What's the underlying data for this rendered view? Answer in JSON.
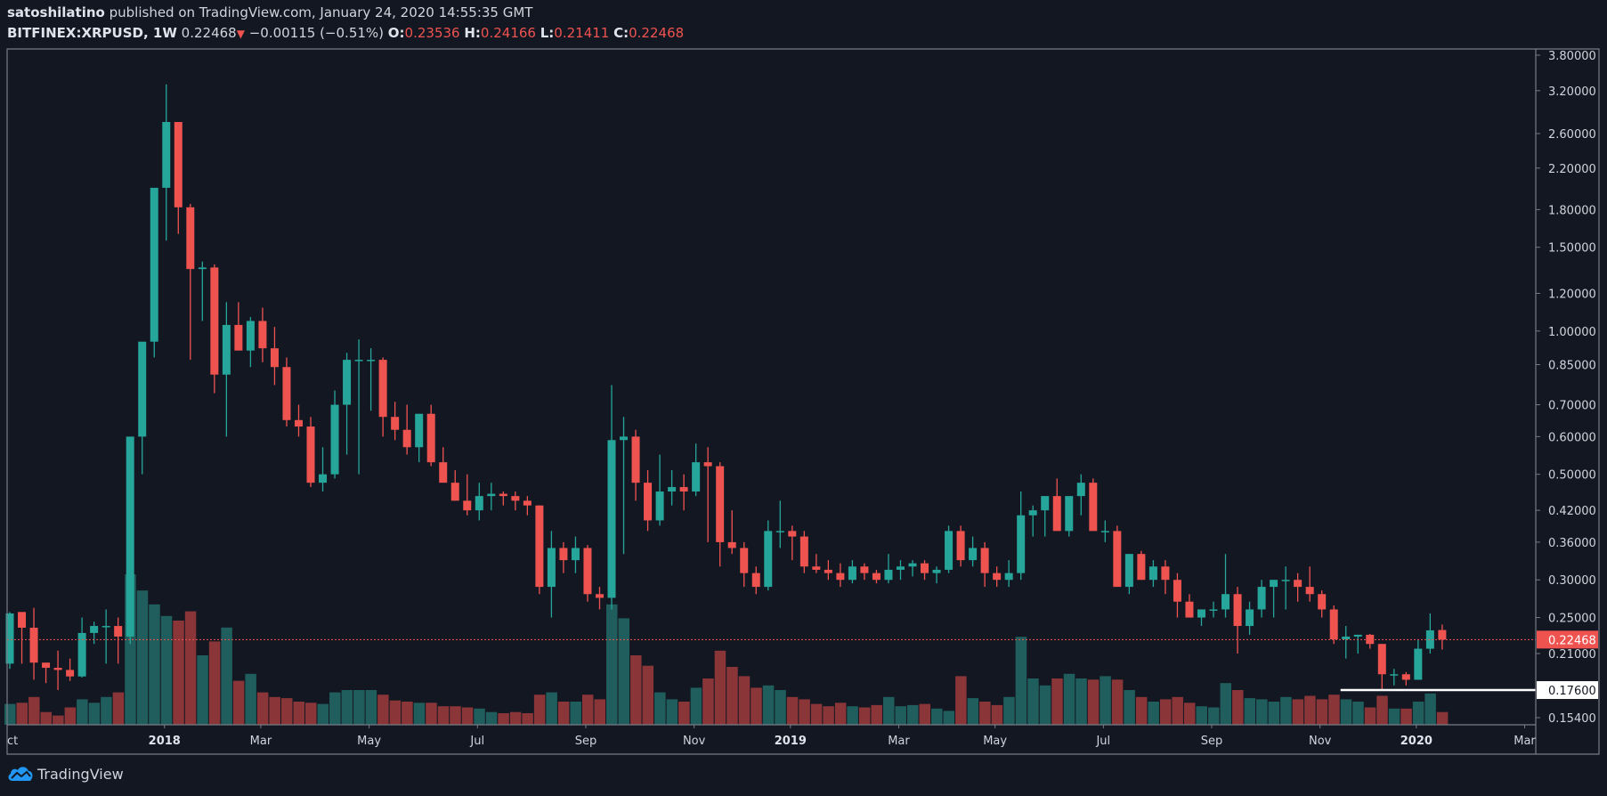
{
  "header": {
    "author": "satoshilatino",
    "published_text": "published on TradingView.com, January 24, 2020 14:55:35 GMT",
    "symbol": "BITFINEX:XRPUSD, 1W",
    "last": "0.22468",
    "change_arrow": "▼",
    "change": "−0.00115 (−0.51%)",
    "o_label": "O:",
    "o": "0.23536",
    "h_label": "H:",
    "h": "0.24166",
    "l_label": "L:",
    "l": "0.21411",
    "c_label": "C:",
    "c": "0.22468"
  },
  "footer": {
    "brand": "TradingView"
  },
  "colors": {
    "background": "#131722",
    "up": "#26a69a",
    "down": "#ef5350",
    "vol_up": "#1f5e5c",
    "vol_down": "#8a3538",
    "axis": "#787b86",
    "text": "#d1d4dc",
    "last_price_line": "#ef5350",
    "support_line": "#ffffff",
    "brand_blue": "#2196f3"
  },
  "chart_data": {
    "type": "candlestick",
    "title": "BITFINEX:XRPUSD, 1W",
    "xlabel": "",
    "ylabel": "",
    "scale": "log",
    "ylim": [
      0.15,
      3.9
    ],
    "y_ticks": [
      "3.80000",
      "3.20000",
      "2.60000",
      "2.20000",
      "1.80000",
      "1.50000",
      "1.20000",
      "1.00000",
      "0.85000",
      "0.70000",
      "0.60000",
      "0.50000",
      "0.42000",
      "0.36000",
      "0.30000",
      "0.25000",
      "0.21000",
      "0.15400"
    ],
    "x_ticks": [
      {
        "label": "ct",
        "index": 0,
        "bold": false
      },
      {
        "label": "2018",
        "index": 13,
        "bold": true
      },
      {
        "label": "Mar",
        "index": 21,
        "bold": false
      },
      {
        "label": "May",
        "index": 30,
        "bold": false
      },
      {
        "label": "Jul",
        "index": 39,
        "bold": false
      },
      {
        "label": "Sep",
        "index": 48,
        "bold": false
      },
      {
        "label": "Nov",
        "index": 57,
        "bold": false
      },
      {
        "label": "2019",
        "index": 65,
        "bold": true
      },
      {
        "label": "Mar",
        "index": 74,
        "bold": false
      },
      {
        "label": "May",
        "index": 82,
        "bold": false
      },
      {
        "label": "Jul",
        "index": 91,
        "bold": false
      },
      {
        "label": "Sep",
        "index": 100,
        "bold": false
      },
      {
        "label": "Nov",
        "index": 109,
        "bold": false
      },
      {
        "label": "2020",
        "index": 117,
        "bold": true
      },
      {
        "label": "Mar",
        "index": 126,
        "bold": false
      }
    ],
    "last_price": {
      "value": 0.22468,
      "label": "0.22468"
    },
    "horizontal_line": {
      "value": 0.176,
      "label": "0.17600",
      "from_index": 111
    },
    "grid": false,
    "legend": "none",
    "candles": [
      [
        0.2,
        0.2568,
        0.195,
        0.255,
        90
      ],
      [
        0.2568,
        0.256,
        0.2,
        0.238,
        95
      ],
      [
        0.238,
        0.262,
        0.185,
        0.201,
        120
      ],
      [
        0.201,
        0.2,
        0.182,
        0.196,
        55
      ],
      [
        0.196,
        0.213,
        0.176,
        0.194,
        40
      ],
      [
        0.194,
        0.205,
        0.184,
        0.188,
        75
      ],
      [
        0.188,
        0.25,
        0.187,
        0.232,
        110
      ],
      [
        0.232,
        0.245,
        0.22,
        0.24,
        95
      ],
      [
        0.24,
        0.26,
        0.2,
        0.24,
        120
      ],
      [
        0.24,
        0.25,
        0.2,
        0.228,
        140
      ],
      [
        0.228,
        0.37,
        0.22,
        0.6,
        650
      ],
      [
        0.6,
        0.9,
        0.5,
        0.95,
        580
      ],
      [
        0.95,
        1.35,
        0.88,
        2.0,
        520
      ],
      [
        2.0,
        3.3,
        1.55,
        2.75,
        470
      ],
      [
        2.75,
        2.75,
        1.6,
        1.82,
        450
      ],
      [
        1.82,
        1.85,
        0.87,
        1.35,
        490
      ],
      [
        1.35,
        1.4,
        1.05,
        1.36,
        300
      ],
      [
        1.36,
        1.38,
        0.74,
        0.81,
        360
      ],
      [
        0.81,
        1.15,
        0.6,
        1.03,
        420
      ],
      [
        1.03,
        1.15,
        0.91,
        0.91,
        190
      ],
      [
        0.91,
        1.07,
        0.84,
        1.05,
        220
      ],
      [
        1.05,
        1.12,
        0.86,
        0.92,
        140
      ],
      [
        0.92,
        1.02,
        0.77,
        0.84,
        120
      ],
      [
        0.84,
        0.88,
        0.63,
        0.65,
        115
      ],
      [
        0.65,
        0.7,
        0.6,
        0.63,
        100
      ],
      [
        0.63,
        0.66,
        0.47,
        0.48,
        95
      ],
      [
        0.48,
        0.57,
        0.46,
        0.5,
        90
      ],
      [
        0.5,
        0.75,
        0.49,
        0.7,
        140
      ],
      [
        0.7,
        0.9,
        0.55,
        0.87,
        150
      ],
      [
        0.87,
        0.96,
        0.5,
        0.87,
        150
      ],
      [
        0.87,
        0.92,
        0.68,
        0.87,
        150
      ],
      [
        0.87,
        0.88,
        0.6,
        0.66,
        130
      ],
      [
        0.66,
        0.71,
        0.59,
        0.62,
        105
      ],
      [
        0.62,
        0.7,
        0.55,
        0.57,
        100
      ],
      [
        0.57,
        0.67,
        0.53,
        0.67,
        95
      ],
      [
        0.67,
        0.7,
        0.52,
        0.53,
        95
      ],
      [
        0.53,
        0.57,
        0.5,
        0.48,
        80
      ],
      [
        0.48,
        0.51,
        0.44,
        0.44,
        80
      ],
      [
        0.44,
        0.5,
        0.41,
        0.42,
        75
      ],
      [
        0.42,
        0.48,
        0.4,
        0.45,
        70
      ],
      [
        0.45,
        0.48,
        0.42,
        0.455,
        55
      ],
      [
        0.455,
        0.46,
        0.43,
        0.45,
        50
      ],
      [
        0.45,
        0.46,
        0.42,
        0.44,
        55
      ],
      [
        0.44,
        0.45,
        0.41,
        0.43,
        50
      ],
      [
        0.43,
        0.43,
        0.28,
        0.29,
        130
      ],
      [
        0.29,
        0.38,
        0.25,
        0.35,
        140
      ],
      [
        0.35,
        0.36,
        0.31,
        0.33,
        100
      ],
      [
        0.33,
        0.37,
        0.31,
        0.35,
        100
      ],
      [
        0.35,
        0.355,
        0.27,
        0.28,
        130
      ],
      [
        0.28,
        0.29,
        0.26,
        0.275,
        110
      ],
      [
        0.275,
        0.77,
        0.26,
        0.59,
        520
      ],
      [
        0.59,
        0.66,
        0.34,
        0.6,
        460
      ],
      [
        0.6,
        0.62,
        0.44,
        0.48,
        300
      ],
      [
        0.48,
        0.51,
        0.38,
        0.4,
        255
      ],
      [
        0.4,
        0.55,
        0.39,
        0.46,
        140
      ],
      [
        0.46,
        0.51,
        0.43,
        0.47,
        110
      ],
      [
        0.47,
        0.5,
        0.42,
        0.46,
        100
      ],
      [
        0.46,
        0.58,
        0.45,
        0.53,
        160
      ],
      [
        0.53,
        0.57,
        0.36,
        0.52,
        200
      ],
      [
        0.52,
        0.53,
        0.32,
        0.36,
        320
      ],
      [
        0.36,
        0.42,
        0.34,
        0.35,
        250
      ],
      [
        0.35,
        0.36,
        0.29,
        0.31,
        210
      ],
      [
        0.31,
        0.32,
        0.28,
        0.29,
        160
      ],
      [
        0.29,
        0.4,
        0.285,
        0.38,
        170
      ],
      [
        0.38,
        0.44,
        0.35,
        0.38,
        150
      ],
      [
        0.38,
        0.39,
        0.33,
        0.37,
        120
      ],
      [
        0.37,
        0.38,
        0.31,
        0.32,
        110
      ],
      [
        0.32,
        0.34,
        0.31,
        0.315,
        90
      ],
      [
        0.315,
        0.33,
        0.3,
        0.31,
        80
      ],
      [
        0.31,
        0.325,
        0.29,
        0.3,
        95
      ],
      [
        0.3,
        0.33,
        0.295,
        0.32,
        80
      ],
      [
        0.32,
        0.325,
        0.3,
        0.31,
        75
      ],
      [
        0.31,
        0.315,
        0.295,
        0.3,
        85
      ],
      [
        0.3,
        0.34,
        0.295,
        0.315,
        120
      ],
      [
        0.315,
        0.33,
        0.3,
        0.32,
        80
      ],
      [
        0.32,
        0.33,
        0.305,
        0.325,
        85
      ],
      [
        0.325,
        0.33,
        0.3,
        0.31,
        90
      ],
      [
        0.31,
        0.32,
        0.295,
        0.315,
        70
      ],
      [
        0.315,
        0.39,
        0.31,
        0.38,
        60
      ],
      [
        0.38,
        0.39,
        0.32,
        0.33,
        210
      ],
      [
        0.33,
        0.37,
        0.32,
        0.35,
        115
      ],
      [
        0.35,
        0.36,
        0.29,
        0.31,
        100
      ],
      [
        0.31,
        0.32,
        0.29,
        0.3,
        85
      ],
      [
        0.3,
        0.33,
        0.29,
        0.31,
        120
      ],
      [
        0.31,
        0.46,
        0.3,
        0.41,
        380
      ],
      [
        0.41,
        0.43,
        0.37,
        0.42,
        200
      ],
      [
        0.42,
        0.45,
        0.37,
        0.45,
        170
      ],
      [
        0.45,
        0.49,
        0.39,
        0.38,
        200
      ],
      [
        0.38,
        0.4,
        0.37,
        0.45,
        220
      ],
      [
        0.45,
        0.5,
        0.41,
        0.48,
        200
      ],
      [
        0.48,
        0.49,
        0.39,
        0.38,
        195
      ],
      [
        0.38,
        0.4,
        0.36,
        0.38,
        210
      ],
      [
        0.38,
        0.39,
        0.3,
        0.29,
        195
      ],
      [
        0.29,
        0.34,
        0.28,
        0.34,
        150
      ],
      [
        0.34,
        0.345,
        0.3,
        0.3,
        120
      ],
      [
        0.3,
        0.33,
        0.29,
        0.32,
        100
      ],
      [
        0.32,
        0.33,
        0.28,
        0.3,
        110
      ],
      [
        0.3,
        0.31,
        0.25,
        0.27,
        120
      ],
      [
        0.27,
        0.28,
        0.25,
        0.25,
        95
      ],
      [
        0.25,
        0.26,
        0.24,
        0.26,
        80
      ],
      [
        0.26,
        0.27,
        0.25,
        0.26,
        75
      ],
      [
        0.26,
        0.34,
        0.25,
        0.28,
        180
      ],
      [
        0.28,
        0.29,
        0.21,
        0.24,
        150
      ],
      [
        0.24,
        0.27,
        0.23,
        0.26,
        115
      ],
      [
        0.26,
        0.3,
        0.25,
        0.29,
        110
      ],
      [
        0.29,
        0.3,
        0.25,
        0.3,
        100
      ],
      [
        0.3,
        0.32,
        0.26,
        0.3,
        120
      ],
      [
        0.3,
        0.31,
        0.27,
        0.29,
        110
      ],
      [
        0.29,
        0.32,
        0.27,
        0.28,
        125
      ],
      [
        0.28,
        0.285,
        0.25,
        0.26,
        110
      ],
      [
        0.26,
        0.265,
        0.22,
        0.225,
        130
      ],
      [
        0.225,
        0.24,
        0.205,
        0.228,
        110
      ],
      [
        0.228,
        0.23,
        0.21,
        0.23,
        100
      ],
      [
        0.23,
        0.231,
        0.215,
        0.22,
        75
      ],
      [
        0.22,
        0.22,
        0.176,
        0.19,
        125
      ],
      [
        0.19,
        0.195,
        0.18,
        0.19,
        70
      ],
      [
        0.19,
        0.192,
        0.18,
        0.185,
        70
      ],
      [
        0.185,
        0.225,
        0.185,
        0.215,
        100
      ],
      [
        0.215,
        0.255,
        0.21,
        0.235,
        135
      ],
      [
        0.23536,
        0.24166,
        0.21411,
        0.22468,
        55
      ]
    ]
  }
}
